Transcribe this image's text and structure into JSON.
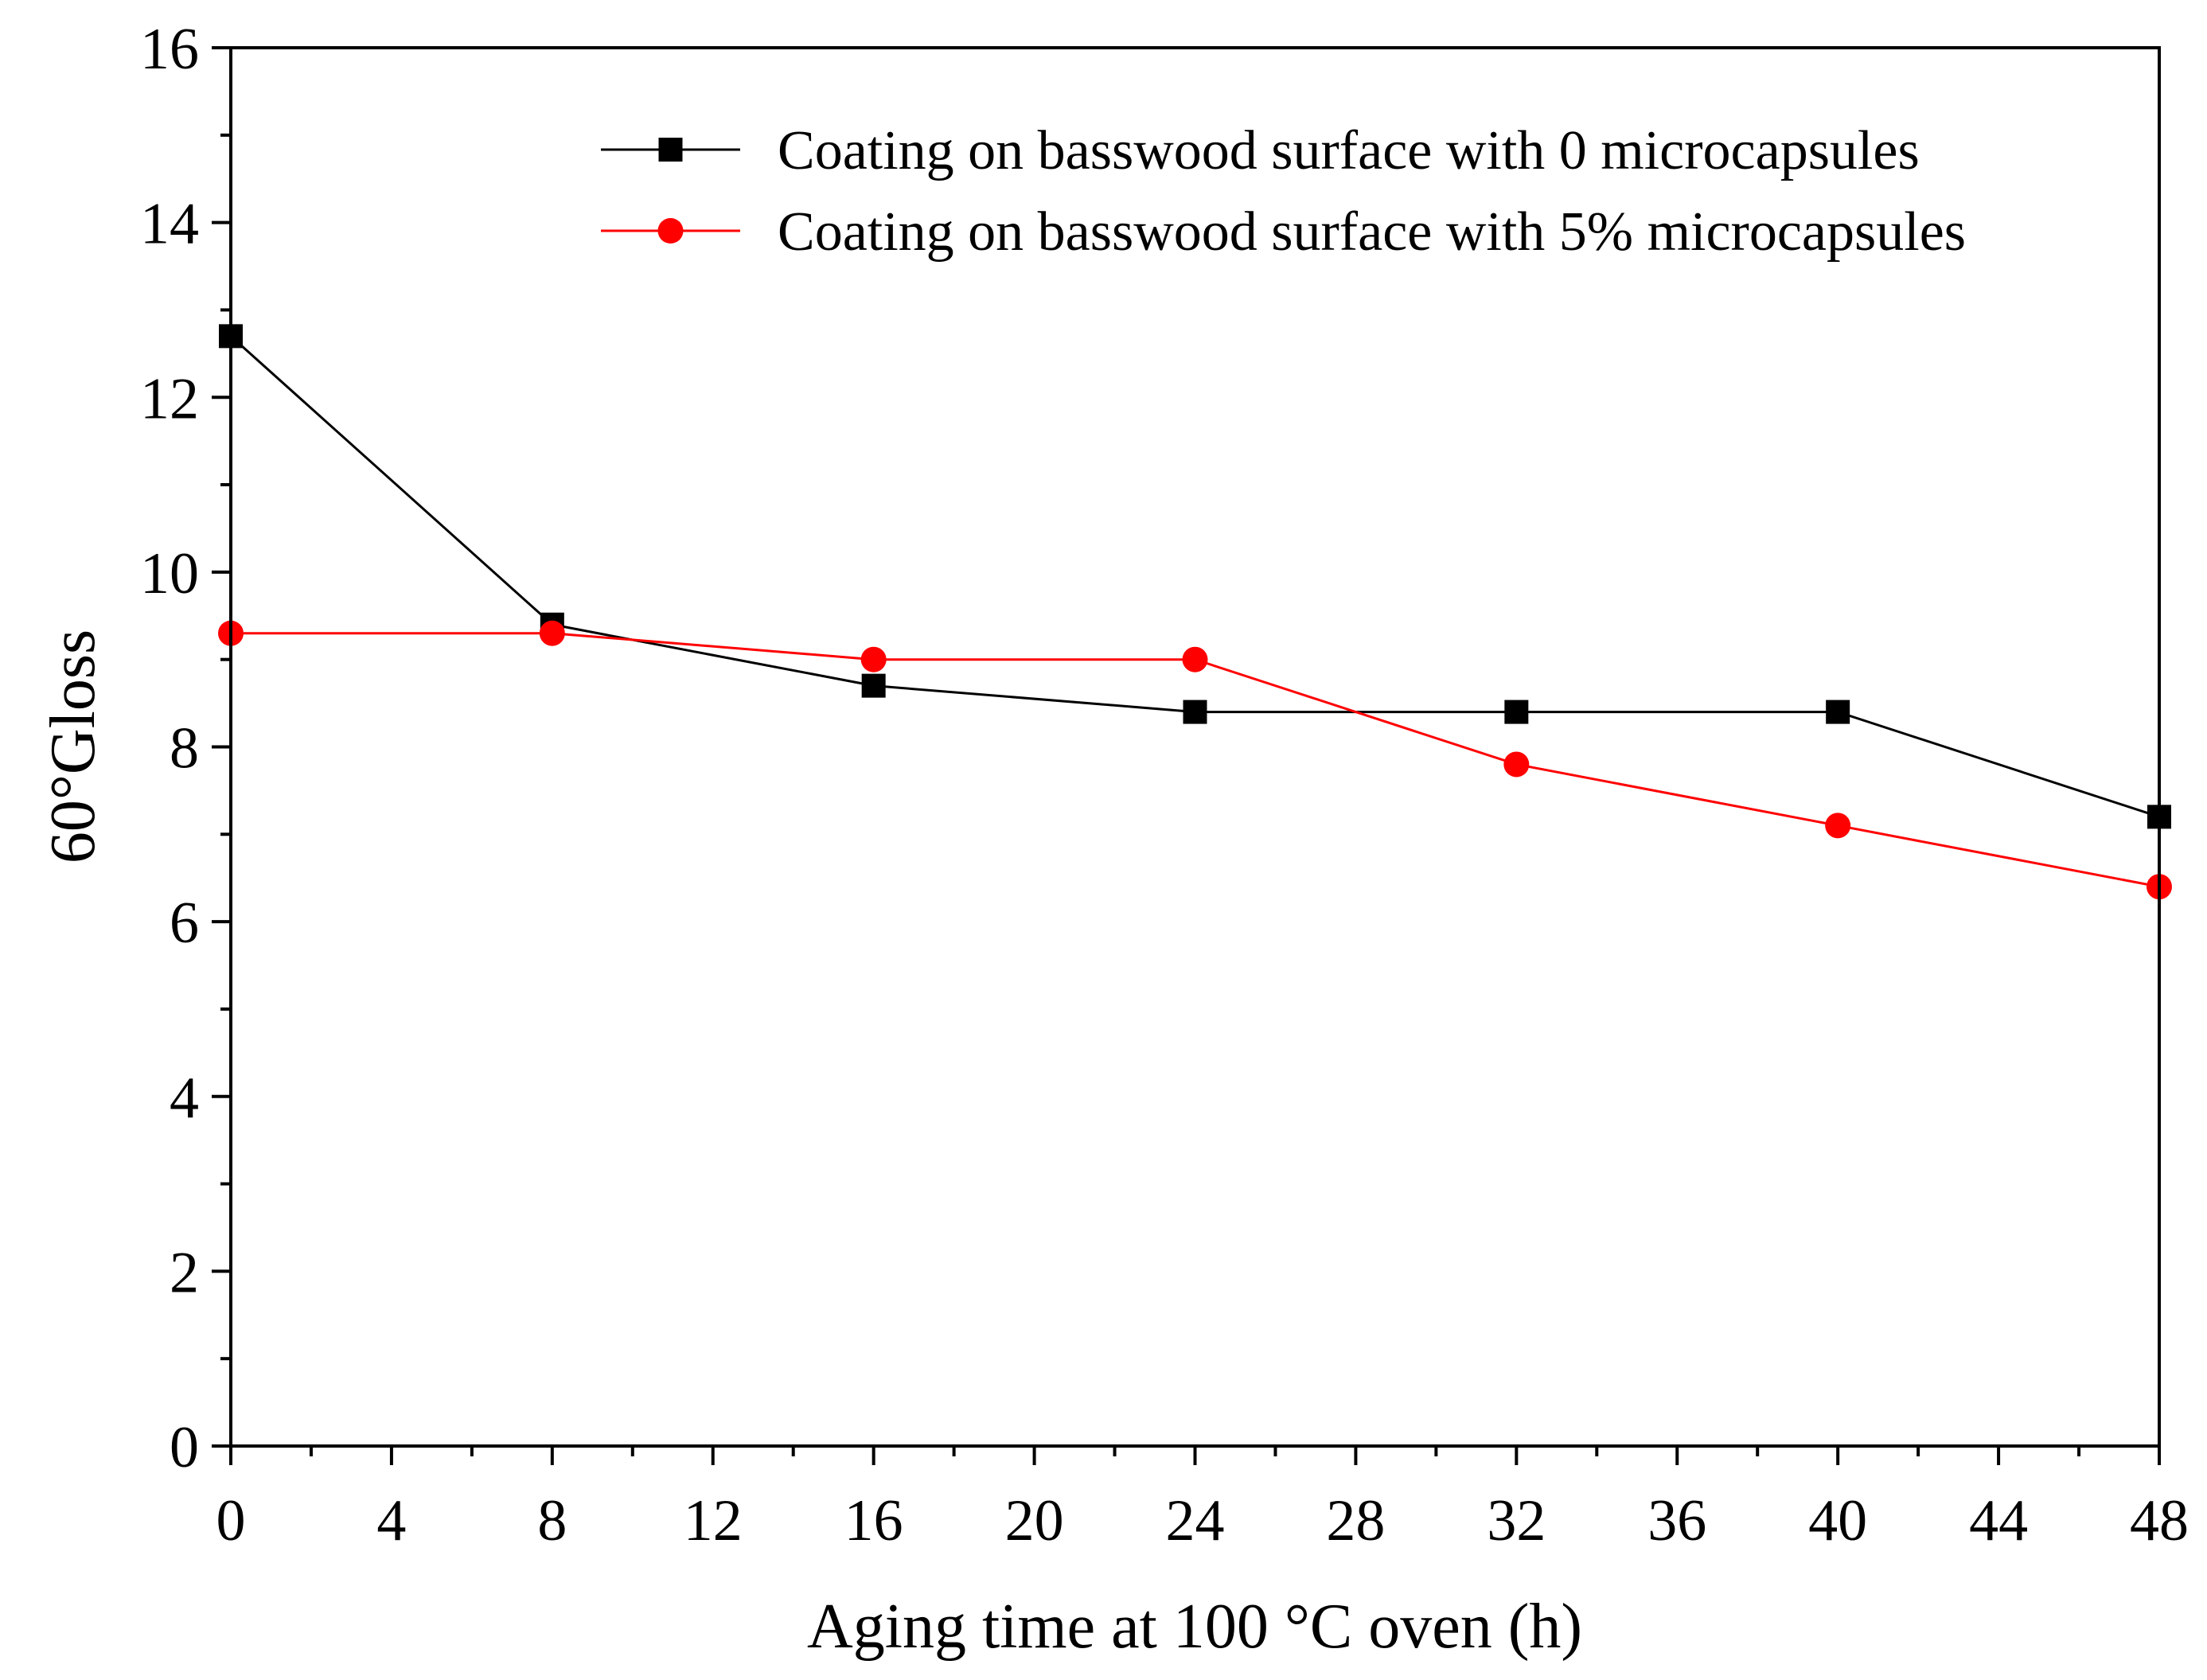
{
  "chart_data": {
    "type": "line",
    "title": "",
    "xlabel": "Aging time at 100 °C oven (h)",
    "ylabel": "60°Gloss",
    "xlim": [
      0,
      48
    ],
    "ylim": [
      0,
      16
    ],
    "xticks": [
      "0",
      "4",
      "8",
      "12",
      "16",
      "20",
      "24",
      "28",
      "32",
      "36",
      "40",
      "44",
      "48"
    ],
    "yticks": [
      "0",
      "2",
      "4",
      "6",
      "8",
      "10",
      "12",
      "14",
      "16"
    ],
    "legend_position": "top-right",
    "series": [
      {
        "name": "Coating on basswood surface with 0 microcapsules",
        "color": "#000000",
        "marker": "square",
        "x": [
          0,
          8,
          16,
          24,
          32,
          40,
          48
        ],
        "values": [
          12.7,
          9.4,
          8.7,
          8.4,
          8.4,
          8.4,
          7.2
        ]
      },
      {
        "name": "Coating on basswood surface with 5% microcapsules",
        "color": "#ff0000",
        "marker": "circle",
        "x": [
          0,
          8,
          16,
          24,
          32,
          40,
          48
        ],
        "values": [
          9.3,
          9.3,
          9.0,
          9.0,
          7.8,
          7.1,
          6.4
        ]
      }
    ]
  }
}
